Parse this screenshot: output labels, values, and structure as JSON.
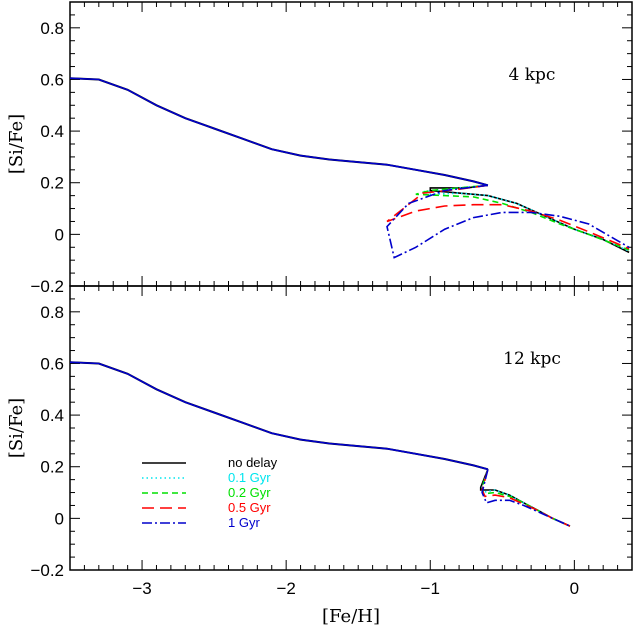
{
  "chart_data": [
    {
      "type": "line",
      "panel": "top",
      "annotation": "4 kpc",
      "xlabel": "",
      "ylabel": "[Si/Fe]",
      "xlim": [
        -3.5,
        0.4
      ],
      "ylim": [
        -0.2,
        0.9
      ],
      "x_ticks": [
        "−3",
        "−2",
        "−1",
        "0"
      ],
      "y_ticks": [
        "−0.2",
        "0",
        "0.2",
        "0.4",
        "0.6",
        "0.8"
      ],
      "y_tick_values": [
        -0.2,
        0,
        0.2,
        0.4,
        0.6,
        0.8
      ],
      "shared_track": {
        "x": [
          -3.5,
          -3.3,
          -3.1,
          -2.9,
          -2.7,
          -2.5,
          -2.3,
          -2.1,
          -1.9,
          -1.7,
          -1.5,
          -1.3,
          -1.1,
          -0.9,
          -0.7,
          -0.6
        ],
        "y": [
          0.605,
          0.6,
          0.56,
          0.5,
          0.45,
          0.41,
          0.37,
          0.33,
          0.305,
          0.29,
          0.28,
          0.27,
          0.25,
          0.23,
          0.205,
          0.19
        ]
      },
      "series": [
        {
          "name": "no delay",
          "color": "#000000",
          "dash": "",
          "x": [
            -0.6,
            -0.75,
            -1.0,
            -1.0,
            -0.8,
            -0.6,
            -0.4,
            -0.2,
            0.0,
            0.2,
            0.38
          ],
          "y": [
            0.19,
            0.18,
            0.18,
            0.17,
            0.16,
            0.15,
            0.12,
            0.07,
            0.02,
            -0.02,
            -0.07
          ]
        },
        {
          "name": "0.1 Gyr",
          "color": "#00e5ee",
          "dash": "1.5 3",
          "x": [
            -0.6,
            -0.8,
            -1.05,
            -1.0,
            -0.8,
            -0.6,
            -0.4,
            -0.2,
            0.0,
            0.2,
            0.38
          ],
          "y": [
            0.19,
            0.18,
            0.165,
            0.155,
            0.16,
            0.15,
            0.12,
            0.07,
            0.02,
            -0.02,
            -0.065
          ]
        },
        {
          "name": "0.2 Gyr",
          "color": "#00e000",
          "dash": "6 4",
          "x": [
            -0.6,
            -0.8,
            -1.0,
            -1.1,
            -0.9,
            -0.7,
            -0.5,
            -0.3,
            -0.1,
            0.1,
            0.38
          ],
          "y": [
            0.19,
            0.18,
            0.17,
            0.155,
            0.15,
            0.145,
            0.12,
            0.085,
            0.04,
            0.0,
            -0.06
          ]
        },
        {
          "name": "0.5 Gyr",
          "color": "#ff0000",
          "dash": "12 6",
          "x": [
            -0.6,
            -0.8,
            -1.05,
            -1.3,
            -1.1,
            -0.9,
            -0.7,
            -0.5,
            -0.3,
            -0.1,
            0.1,
            0.38
          ],
          "y": [
            0.19,
            0.175,
            0.16,
            0.05,
            0.09,
            0.11,
            0.115,
            0.115,
            0.09,
            0.055,
            0.01,
            -0.055
          ]
        },
        {
          "name": "1 Gyr",
          "color": "#0000cc",
          "dash": "10 3 2 3",
          "x": [
            -0.6,
            -0.9,
            -1.15,
            -1.3,
            -1.25,
            -1.1,
            -0.9,
            -0.7,
            -0.5,
            -0.3,
            -0.1,
            0.1,
            0.38
          ],
          "y": [
            0.19,
            0.17,
            0.12,
            0.03,
            -0.09,
            -0.05,
            0.02,
            0.065,
            0.085,
            0.085,
            0.07,
            0.04,
            -0.05
          ]
        }
      ]
    },
    {
      "type": "line",
      "panel": "bottom",
      "annotation": "12 kpc",
      "xlabel": "[Fe/H]",
      "ylabel": "[Si/Fe]",
      "xlim": [
        -3.5,
        0.4
      ],
      "ylim": [
        -0.2,
        0.9
      ],
      "x_ticks": [
        "−3",
        "−2",
        "−1",
        "0"
      ],
      "x_tick_values": [
        -3,
        -2,
        -1,
        0
      ],
      "y_ticks": [
        "−0.2",
        "0",
        "0.2",
        "0.4",
        "0.6",
        "0.8"
      ],
      "y_tick_values": [
        -0.2,
        0,
        0.2,
        0.4,
        0.6,
        0.8
      ],
      "shared_track": {
        "x": [
          -3.5,
          -3.3,
          -3.1,
          -2.9,
          -2.7,
          -2.5,
          -2.3,
          -2.1,
          -1.9,
          -1.7,
          -1.5,
          -1.3,
          -1.1,
          -0.9,
          -0.7,
          -0.6
        ],
        "y": [
          0.605,
          0.6,
          0.56,
          0.5,
          0.45,
          0.41,
          0.37,
          0.33,
          0.305,
          0.29,
          0.28,
          0.27,
          0.25,
          0.23,
          0.205,
          0.19
        ]
      },
      "series": [
        {
          "name": "no delay",
          "color": "#000000",
          "dash": "",
          "x": [
            -0.6,
            -0.65,
            -0.65,
            -0.55,
            -0.45,
            -0.35,
            -0.25,
            -0.15,
            -0.03
          ],
          "y": [
            0.19,
            0.12,
            0.11,
            0.11,
            0.09,
            0.06,
            0.03,
            0.0,
            -0.03
          ]
        },
        {
          "name": "0.1 Gyr",
          "color": "#00e5ee",
          "dash": "1.5 3",
          "x": [
            -0.6,
            -0.64,
            -0.64,
            -0.55,
            -0.45,
            -0.35,
            -0.25,
            -0.15,
            -0.03
          ],
          "y": [
            0.19,
            0.12,
            0.1,
            0.11,
            0.09,
            0.06,
            0.03,
            0.0,
            -0.03
          ]
        },
        {
          "name": "0.2 Gyr",
          "color": "#00e000",
          "dash": "6 4",
          "x": [
            -0.6,
            -0.64,
            -0.63,
            -0.55,
            -0.45,
            -0.35,
            -0.25,
            -0.15,
            -0.03
          ],
          "y": [
            0.19,
            0.12,
            0.095,
            0.1,
            0.085,
            0.06,
            0.03,
            0.0,
            -0.03
          ]
        },
        {
          "name": "0.5 Gyr",
          "color": "#ff0000",
          "dash": "12 6",
          "x": [
            -0.6,
            -0.64,
            -0.62,
            -0.55,
            -0.45,
            -0.35,
            -0.25,
            -0.15,
            -0.03
          ],
          "y": [
            0.19,
            0.11,
            0.085,
            0.09,
            0.08,
            0.055,
            0.03,
            0.0,
            -0.03
          ]
        },
        {
          "name": "1 Gyr",
          "color": "#0000cc",
          "dash": "10 3 2 3",
          "x": [
            -0.6,
            -0.64,
            -0.61,
            -0.55,
            -0.45,
            -0.35,
            -0.25,
            -0.15,
            -0.03
          ],
          "y": [
            0.19,
            0.1,
            0.06,
            0.07,
            0.07,
            0.05,
            0.025,
            0.0,
            -0.03
          ]
        }
      ]
    }
  ]
}
